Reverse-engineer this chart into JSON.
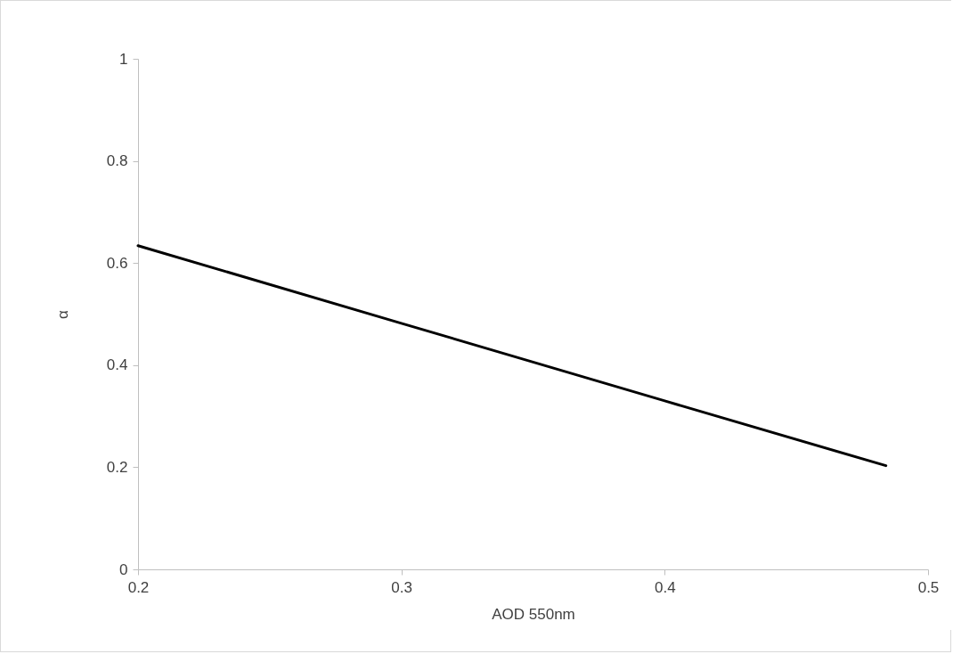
{
  "chart_data": {
    "type": "line",
    "xlabel": "AOD 550nm",
    "ylabel": "α",
    "x": [
      0.2,
      0.3,
      0.4,
      0.484
    ],
    "series": [
      {
        "color": "#000000",
        "values": [
          0.634,
          0.482,
          0.33,
          0.203
        ]
      }
    ],
    "xlim": [
      0.2,
      0.5
    ],
    "xticks": [
      0.2,
      0.3,
      0.4,
      0.5
    ],
    "ylim": [
      0,
      1
    ],
    "yticks": [
      {
        "value": 0,
        "label": "0"
      },
      0.2,
      0.4,
      0.6,
      0.8,
      {
        "value": 1,
        "label": "1"
      }
    ],
    "grid": false,
    "marker": "none",
    "line_style": "solid"
  }
}
